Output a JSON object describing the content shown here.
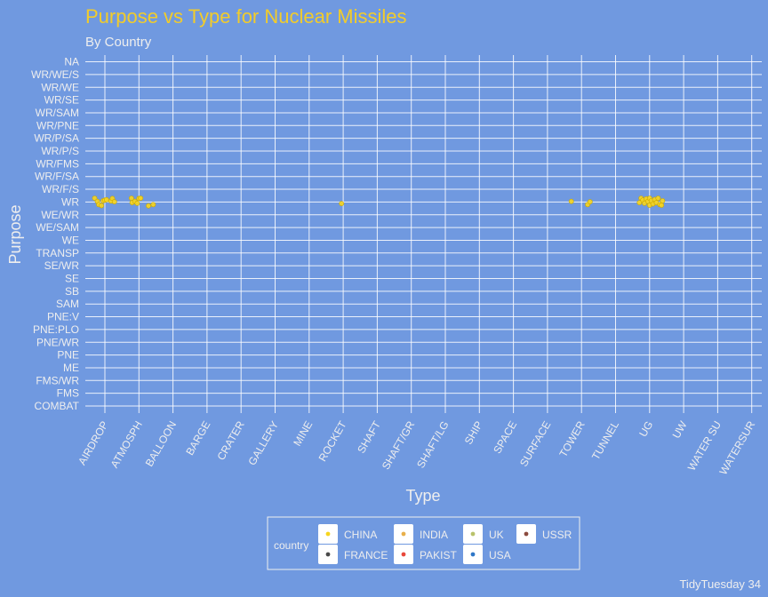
{
  "chart_data": {
    "type": "scatter",
    "title": "Purpose vs Type for Nuclear Missiles",
    "subtitle": "By Country",
    "xlabel": "Type",
    "ylabel": "Purpose",
    "caption": "TidyTuesday 34",
    "x_categories": [
      "AIRDROP",
      "ATMOSPH",
      "BALLOON",
      "BARGE",
      "CRATER",
      "GALLERY",
      "MINE",
      "ROCKET",
      "SHAFT",
      "SHAFT/GR",
      "SHAFT/LG",
      "SHIP",
      "SPACE",
      "SURFACE",
      "TOWER",
      "TUNNEL",
      "UG",
      "UW",
      "WATER SU",
      "WATERSUR"
    ],
    "y_categories": [
      "COMBAT",
      "FMS",
      "FMS/WR",
      "ME",
      "PNE",
      "PNE/WR",
      "PNE:PLO",
      "PNE:V",
      "SAM",
      "SB",
      "SE",
      "SE/WR",
      "TRANSP",
      "WE",
      "WE/SAM",
      "WE/WR",
      "WR",
      "WR/F/S",
      "WR/F/SA",
      "WR/FMS",
      "WR/P/S",
      "WR/P/SA",
      "WR/PNE",
      "WR/SAM",
      "WR/SE",
      "WR/WE",
      "WR/WE/S",
      "NA"
    ],
    "grid": true,
    "jitter": true,
    "legend": {
      "title": "country",
      "position": "bottom",
      "entries": [
        {
          "name": "CHINA",
          "color": "#f7d51e"
        },
        {
          "name": "FRANCE",
          "color": "#4a4a4a"
        },
        {
          "name": "INDIA",
          "color": "#e8b04b"
        },
        {
          "name": "PAKIST",
          "color": "#e8483b"
        },
        {
          "name": "UK",
          "color": "#b9c26b"
        },
        {
          "name": "USA",
          "color": "#2f77c7"
        },
        {
          "name": "USSR",
          "color": "#8b4b3e"
        }
      ]
    },
    "series": [
      {
        "name": "CHINA",
        "color": "#f7d51e",
        "points": [
          {
            "x": "AIRDROP",
            "y": "WR",
            "dx": -0.3,
            "dy": 0.3
          },
          {
            "x": "AIRDROP",
            "y": "WR",
            "dx": -0.22,
            "dy": 0.05
          },
          {
            "x": "AIRDROP",
            "y": "WR",
            "dx": -0.18,
            "dy": -0.2
          },
          {
            "x": "AIRDROP",
            "y": "WR",
            "dx": -0.1,
            "dy": -0.28
          },
          {
            "x": "AIRDROP",
            "y": "WR",
            "dx": -0.05,
            "dy": 0.1
          },
          {
            "x": "AIRDROP",
            "y": "WR",
            "dx": 0.0,
            "dy": 0.15
          },
          {
            "x": "AIRDROP",
            "y": "WR",
            "dx": 0.05,
            "dy": 0.18
          },
          {
            "x": "AIRDROP",
            "y": "WR",
            "dx": 0.18,
            "dy": 0.08
          },
          {
            "x": "AIRDROP",
            "y": "WR",
            "dx": 0.22,
            "dy": 0.28
          },
          {
            "x": "AIRDROP",
            "y": "WR",
            "dx": 0.28,
            "dy": 0.02
          },
          {
            "x": "ATMOSPH",
            "y": "WR",
            "dx": -0.22,
            "dy": 0.3
          },
          {
            "x": "ATMOSPH",
            "y": "WR",
            "dx": -0.2,
            "dy": -0.05
          },
          {
            "x": "ATMOSPH",
            "y": "WR",
            "dx": -0.12,
            "dy": 0.05
          },
          {
            "x": "ATMOSPH",
            "y": "WR",
            "dx": -0.05,
            "dy": -0.1
          },
          {
            "x": "ATMOSPH",
            "y": "WR",
            "dx": 0.0,
            "dy": 0.28
          },
          {
            "x": "ATMOSPH",
            "y": "WR",
            "dx": 0.05,
            "dy": 0.3
          },
          {
            "x": "ATMOSPH",
            "y": "WR",
            "dx": 0.28,
            "dy": -0.3
          },
          {
            "x": "ATMOSPH",
            "y": "WR",
            "dx": 0.42,
            "dy": -0.2
          },
          {
            "x": "ROCKET",
            "y": "WR",
            "dx": -0.05,
            "dy": -0.12
          },
          {
            "x": "TOWER",
            "y": "WR",
            "dx": -0.3,
            "dy": 0.05
          },
          {
            "x": "TOWER",
            "y": "WR",
            "dx": 0.18,
            "dy": -0.2
          },
          {
            "x": "TOWER",
            "y": "WR",
            "dx": 0.25,
            "dy": 0.02
          },
          {
            "x": "UG",
            "y": "WR",
            "dx": -0.3,
            "dy": -0.05
          },
          {
            "x": "UG",
            "y": "WR",
            "dx": -0.25,
            "dy": 0.3
          },
          {
            "x": "UG",
            "y": "WR",
            "dx": -0.2,
            "dy": 0.15
          },
          {
            "x": "UG",
            "y": "WR",
            "dx": -0.15,
            "dy": -0.1
          },
          {
            "x": "UG",
            "y": "WR",
            "dx": -0.1,
            "dy": 0.25
          },
          {
            "x": "UG",
            "y": "WR",
            "dx": -0.05,
            "dy": 0.05
          },
          {
            "x": "UG",
            "y": "WR",
            "dx": 0.0,
            "dy": -0.25
          },
          {
            "x": "UG",
            "y": "WR",
            "dx": 0.0,
            "dy": 0.3
          },
          {
            "x": "UG",
            "y": "WR",
            "dx": 0.05,
            "dy": 0.1
          },
          {
            "x": "UG",
            "y": "WR",
            "dx": 0.1,
            "dy": -0.15
          },
          {
            "x": "UG",
            "y": "WR",
            "dx": 0.15,
            "dy": 0.2
          },
          {
            "x": "UG",
            "y": "WR",
            "dx": 0.2,
            "dy": -0.05
          },
          {
            "x": "UG",
            "y": "WR",
            "dx": 0.25,
            "dy": 0.3
          },
          {
            "x": "UG",
            "y": "WR",
            "dx": 0.3,
            "dy": -0.2
          },
          {
            "x": "UG",
            "y": "WR",
            "dx": 0.35,
            "dy": -0.25
          },
          {
            "x": "UG",
            "y": "WR",
            "dx": 0.38,
            "dy": 0.1
          }
        ]
      }
    ]
  }
}
